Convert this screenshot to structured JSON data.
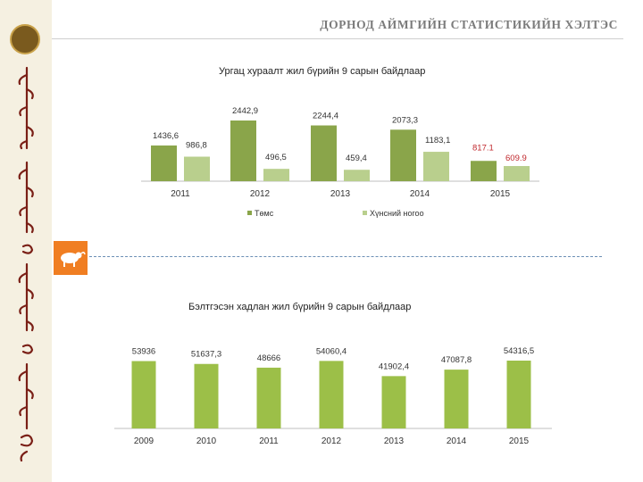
{
  "header": {
    "title": "ДОРНОД АЙМГИЙН СТАТИСТИКИЙН ХЭЛТЭС"
  },
  "colors": {
    "dark_green": "#8aa54a",
    "light_green": "#b9cf8d",
    "bar_green": "#9cbf48",
    "orange": "#f07e22",
    "red_label": "#c0282d"
  },
  "chart_data": [
    {
      "type": "bar",
      "title": "Ургац хураалт жил бүрийн 9 сарын байдлаар",
      "categories": [
        "2011",
        "2012",
        "2013",
        "2014",
        "2015"
      ],
      "series": [
        {
          "name": "Төмс",
          "values": [
            1436.6,
            2442.9,
            2244.4,
            2073.3,
            817.1
          ],
          "labels": [
            "1436,6",
            "2442,9",
            "2244,4",
            "2073,3",
            "817.1"
          ]
        },
        {
          "name": "Хүнсний ногоо",
          "values": [
            986.8,
            496.5,
            459.4,
            1183.1,
            609.9
          ],
          "labels": [
            "986,8",
            "496,5",
            "459,4",
            "1183,1",
            "609.9"
          ]
        }
      ],
      "legend": "bottom"
    },
    {
      "type": "bar",
      "title": "Бэлтгэсэн хадлан жил бүрийн 9 сарын байдлаар",
      "categories": [
        "2009",
        "2010",
        "2011",
        "2012",
        "2013",
        "2014",
        "2015"
      ],
      "values": [
        53936,
        51637.3,
        48666,
        54060.4,
        41902.4,
        47087.8,
        54316.5
      ],
      "labels": [
        "53936",
        "51637,3",
        "48666",
        "54060,4",
        "41902,4",
        "47087,8",
        "54316,5"
      ]
    }
  ]
}
